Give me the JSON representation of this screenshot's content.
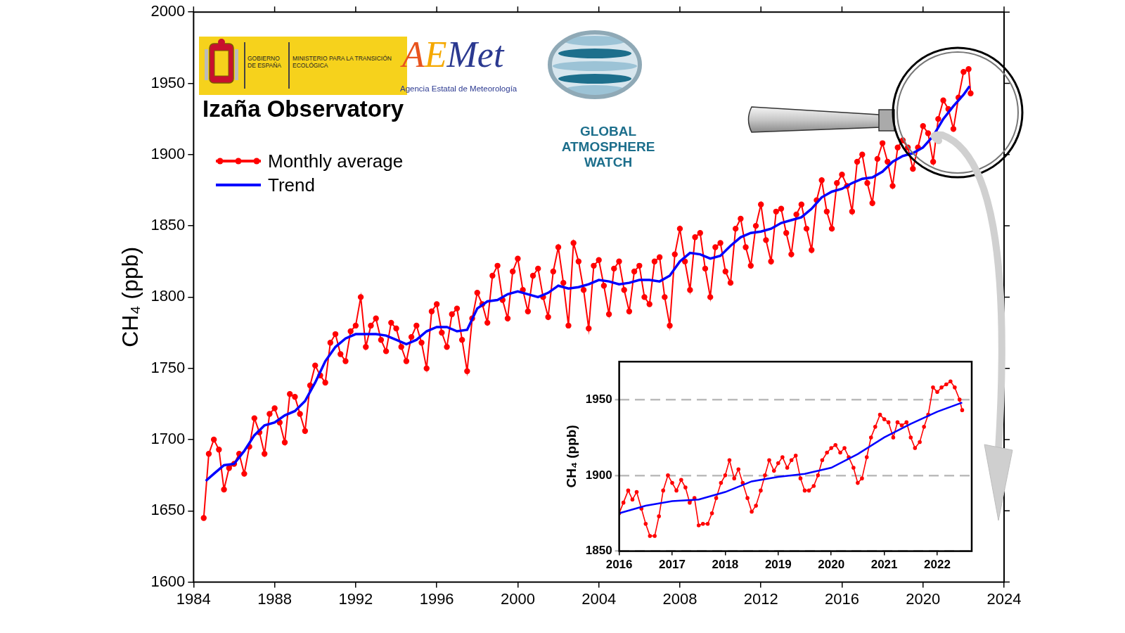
{
  "chart_data": [
    {
      "type": "line",
      "title": "Izaña Observatory",
      "y_label": "CH₄ (ppb)",
      "annotations": [
        "GOBIERNO DE ESPAÑA",
        "MINISTERIO PARA LA TRANSICIÓN ECOLÓGICA",
        "AEMet",
        "Agencia Estatal de Meteorología",
        "GLOBAL ATMOSPHERE WATCH"
      ],
      "xlim": [
        1984,
        2024
      ],
      "xticks": [
        1984,
        1988,
        1992,
        1996,
        2000,
        2004,
        2008,
        2012,
        2016,
        2020,
        2024
      ],
      "ylim": [
        1600,
        2000
      ],
      "yticks": [
        1600,
        1650,
        1700,
        1750,
        1800,
        1850,
        1900,
        1950,
        2000
      ],
      "grid": false,
      "legend": "upper left",
      "series": [
        {
          "name": "Monthly average",
          "color": "#ff0000",
          "marker": "circle",
          "line_style": "solid",
          "x": [
            1984.5,
            1984.75,
            1985,
            1985.25,
            1985.5,
            1985.75,
            1986,
            1986.25,
            1986.5,
            1986.75,
            1987,
            1987.25,
            1987.5,
            1987.75,
            1988,
            1988.25,
            1988.5,
            1988.75,
            1989,
            1989.25,
            1989.5,
            1989.75,
            1990,
            1990.25,
            1990.5,
            1990.75,
            1991,
            1991.25,
            1991.5,
            1991.75,
            1992,
            1992.25,
            1992.5,
            1992.75,
            1993,
            1993.25,
            1993.5,
            1993.75,
            1994,
            1994.25,
            1994.5,
            1994.75,
            1995,
            1995.25,
            1995.5,
            1995.75,
            1996,
            1996.25,
            1996.5,
            1996.75,
            1997,
            1997.25,
            1997.5,
            1997.75,
            1998,
            1998.25,
            1998.5,
            1998.75,
            1999,
            1999.25,
            1999.5,
            1999.75,
            2000,
            2000.25,
            2000.5,
            2000.75,
            2001,
            2001.25,
            2001.5,
            2001.75,
            2002,
            2002.25,
            2002.5,
            2002.75,
            2003,
            2003.25,
            2003.5,
            2003.75,
            2004,
            2004.25,
            2004.5,
            2004.75,
            2005,
            2005.25,
            2005.5,
            2005.75,
            2006,
            2006.25,
            2006.5,
            2006.75,
            2007,
            2007.25,
            2007.5,
            2007.75,
            2008,
            2008.25,
            2008.5,
            2008.75,
            2009,
            2009.25,
            2009.5,
            2009.75,
            2010,
            2010.25,
            2010.5,
            2010.75,
            2011,
            2011.25,
            2011.5,
            2011.75,
            2012,
            2012.25,
            2012.5,
            2012.75,
            2013,
            2013.25,
            2013.5,
            2013.75,
            2014,
            2014.25,
            2014.5,
            2014.75,
            2015,
            2015.25,
            2015.5,
            2015.75,
            2016,
            2016.25,
            2016.5,
            2016.75,
            2017,
            2017.25,
            2017.5,
            2017.75,
            2018,
            2018.25,
            2018.5,
            2018.75,
            2019,
            2019.25,
            2019.5,
            2019.75,
            2020,
            2020.25,
            2020.5,
            2020.75,
            2021,
            2021.25,
            2021.5,
            2021.75,
            2022,
            2022.25,
            2022.35
          ],
          "values": [
            1645,
            1690,
            1700,
            1693,
            1665,
            1680,
            1683,
            1690,
            1676,
            1695,
            1715,
            1705,
            1690,
            1718,
            1722,
            1712,
            1698,
            1732,
            1730,
            1718,
            1706,
            1738,
            1752,
            1745,
            1740,
            1768,
            1774,
            1760,
            1755,
            1776,
            1780,
            1800,
            1765,
            1780,
            1785,
            1770,
            1762,
            1782,
            1778,
            1765,
            1755,
            1772,
            1780,
            1768,
            1750,
            1790,
            1795,
            1775,
            1765,
            1788,
            1792,
            1770,
            1748,
            1785,
            1803,
            1795,
            1782,
            1815,
            1822,
            1798,
            1785,
            1818,
            1827,
            1805,
            1790,
            1815,
            1820,
            1800,
            1786,
            1818,
            1835,
            1810,
            1780,
            1838,
            1825,
            1805,
            1778,
            1822,
            1826,
            1808,
            1788,
            1820,
            1825,
            1805,
            1790,
            1818,
            1822,
            1800,
            1795,
            1825,
            1828,
            1800,
            1780,
            1830,
            1848,
            1825,
            1805,
            1842,
            1845,
            1820,
            1800,
            1835,
            1838,
            1818,
            1810,
            1848,
            1855,
            1835,
            1822,
            1850,
            1865,
            1840,
            1825,
            1860,
            1862,
            1845,
            1830,
            1858,
            1865,
            1848,
            1833,
            1868,
            1882,
            1860,
            1848,
            1880,
            1886,
            1878,
            1860,
            1895,
            1900,
            1880,
            1866,
            1897,
            1908,
            1895,
            1878,
            1905,
            1910,
            1905,
            1890,
            1905,
            1920,
            1915,
            1895,
            1925,
            1938,
            1932,
            1918,
            1940,
            1958,
            1960,
            1943
          ]
        },
        {
          "name": "Trend",
          "color": "#0000ff",
          "line_style": "solid",
          "x": [
            1984.6,
            1985,
            1985.5,
            1986,
            1986.5,
            1987,
            1987.5,
            1988,
            1988.5,
            1989,
            1989.5,
            1990,
            1990.5,
            1991,
            1991.5,
            1992,
            1993,
            1993.5,
            1994,
            1994.5,
            1995,
            1995.5,
            1996,
            1996.5,
            1997,
            1997.5,
            1998,
            1998.5,
            1999,
            1999.5,
            2000,
            2000.5,
            2001,
            2001.5,
            2002,
            2002.5,
            2003,
            2003.5,
            2004,
            2004.5,
            2005,
            2005.5,
            2006,
            2006.5,
            2007,
            2007.5,
            2008,
            2008.5,
            2009,
            2009.5,
            2010,
            2010.5,
            2011,
            2011.5,
            2012,
            2012.5,
            2013,
            2013.5,
            2014,
            2014.5,
            2015,
            2015.5,
            2016,
            2016.5,
            2017,
            2017.5,
            2018,
            2018.5,
            2019,
            2019.5,
            2020,
            2020.5,
            2021,
            2021.5,
            2022,
            2022.3
          ],
          "values": [
            1671,
            1676,
            1682,
            1683,
            1692,
            1703,
            1710,
            1712,
            1717,
            1720,
            1727,
            1740,
            1755,
            1765,
            1771,
            1774,
            1774,
            1773,
            1770,
            1767,
            1770,
            1776,
            1779,
            1779,
            1776,
            1777,
            1792,
            1797,
            1798,
            1802,
            1804,
            1802,
            1800,
            1803,
            1808,
            1806,
            1807,
            1809,
            1812,
            1811,
            1809,
            1810,
            1812,
            1812,
            1811,
            1815,
            1825,
            1831,
            1830,
            1827,
            1829,
            1836,
            1842,
            1845,
            1846,
            1848,
            1852,
            1854,
            1856,
            1862,
            1870,
            1874,
            1876,
            1880,
            1883,
            1884,
            1888,
            1895,
            1899,
            1901,
            1905,
            1913,
            1925,
            1934,
            1942,
            1948
          ]
        }
      ]
    },
    {
      "type": "line",
      "y_label": "CH₄ (ppb)",
      "xlim": [
        2016,
        2022.65
      ],
      "xticks": [
        2016,
        2017,
        2018,
        2019,
        2020,
        2021,
        2022
      ],
      "ylim": [
        1850,
        1975
      ],
      "yticks": [
        1850,
        1900,
        1950
      ],
      "grid": true,
      "series": [
        {
          "name": "Monthly average",
          "color": "#ff0000",
          "marker": "circle",
          "line_style": "solid",
          "x": [
            2016,
            2016.08,
            2016.17,
            2016.25,
            2016.33,
            2016.42,
            2016.5,
            2016.58,
            2016.67,
            2016.75,
            2016.83,
            2016.92,
            2017,
            2017.08,
            2017.17,
            2017.25,
            2017.33,
            2017.42,
            2017.5,
            2017.58,
            2017.67,
            2017.75,
            2017.83,
            2017.92,
            2018,
            2018.08,
            2018.17,
            2018.25,
            2018.33,
            2018.42,
            2018.5,
            2018.58,
            2018.67,
            2018.75,
            2018.83,
            2018.92,
            2019,
            2019.08,
            2019.17,
            2019.25,
            2019.33,
            2019.42,
            2019.5,
            2019.58,
            2019.67,
            2019.75,
            2019.83,
            2019.92,
            2020,
            2020.08,
            2020.17,
            2020.25,
            2020.33,
            2020.42,
            2020.5,
            2020.58,
            2020.67,
            2020.75,
            2020.83,
            2020.92,
            2021,
            2021.08,
            2021.17,
            2021.25,
            2021.33,
            2021.42,
            2021.5,
            2021.58,
            2021.67,
            2021.75,
            2021.83,
            2021.92,
            2022,
            2022.08,
            2022.17,
            2022.25,
            2022.33,
            2022.42,
            2022.47
          ],
          "values": [
            1875,
            1882,
            1890,
            1884,
            1889,
            1878,
            1868,
            1860,
            1860,
            1873,
            1890,
            1900,
            1895,
            1890,
            1897,
            1892,
            1882,
            1885,
            1867,
            1868,
            1868,
            1875,
            1885,
            1895,
            1900,
            1910,
            1898,
            1904,
            1895,
            1885,
            1876,
            1880,
            1890,
            1900,
            1910,
            1903,
            1908,
            1912,
            1905,
            1910,
            1913,
            1898,
            1890,
            1890,
            1893,
            1900,
            1910,
            1915,
            1918,
            1920,
            1915,
            1918,
            1912,
            1905,
            1895,
            1898,
            1912,
            1925,
            1932,
            1940,
            1937,
            1935,
            1925,
            1935,
            1933,
            1935,
            1925,
            1918,
            1922,
            1932,
            1940,
            1958,
            1955,
            1958,
            1960,
            1962,
            1958,
            1950,
            1943
          ]
        },
        {
          "name": "Trend",
          "color": "#0000ff",
          "line_style": "solid",
          "x": [
            2016,
            2016.5,
            2017,
            2017.5,
            2018,
            2018.5,
            2019,
            2019.5,
            2020,
            2020.5,
            2021,
            2021.5,
            2022,
            2022.47
          ],
          "values": [
            1875,
            1880,
            1883,
            1884,
            1889,
            1896,
            1899,
            1901,
            1905,
            1914,
            1925,
            1934,
            1942,
            1948
          ]
        }
      ]
    }
  ]
}
